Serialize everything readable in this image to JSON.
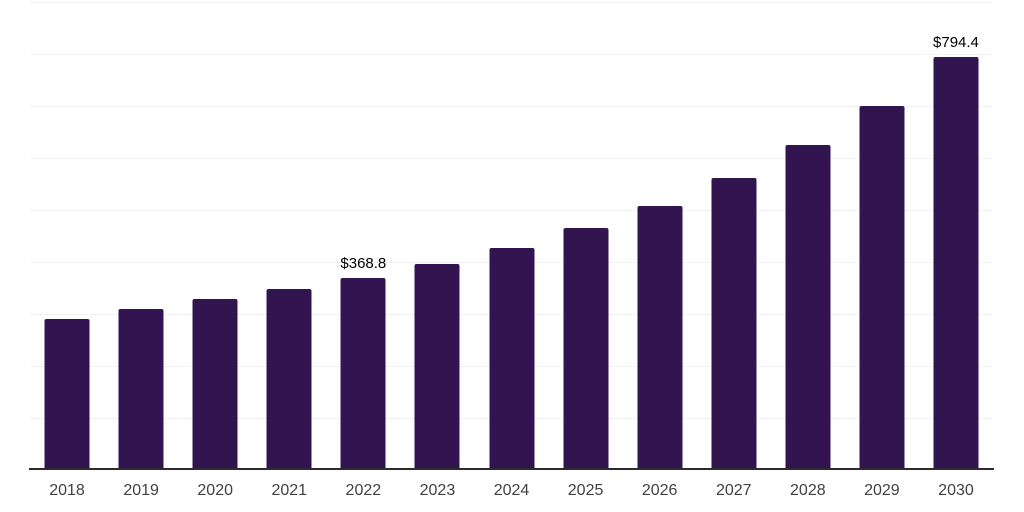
{
  "chart_data": {
    "type": "bar",
    "title": "",
    "xlabel": "",
    "ylabel": "",
    "categories": [
      "2018",
      "2019",
      "2020",
      "2021",
      "2022",
      "2023",
      "2024",
      "2025",
      "2026",
      "2027",
      "2028",
      "2029",
      "2030"
    ],
    "values": [
      291,
      310,
      329,
      349,
      368.8,
      396,
      427,
      466,
      508,
      562,
      625,
      700,
      794.4
    ],
    "value_prefix": "$",
    "annotations": [
      {
        "category": "2022",
        "index": 4,
        "text": "$368.8"
      },
      {
        "category": "2030",
        "index": 12,
        "text": "$794.4"
      }
    ],
    "ylim": [
      0,
      900
    ],
    "gridline_step": 100,
    "grid": "horizontal-only",
    "y_axis_tick_labels": "none",
    "legend_position": "none"
  },
  "style": {
    "bar_color": "#321450",
    "gridline_color": "#f1f1f1",
    "axis_line_color": "#2b2b2b",
    "x_label_color": "#414141",
    "value_label_color": "#000000",
    "background_color": "#ffffff"
  }
}
